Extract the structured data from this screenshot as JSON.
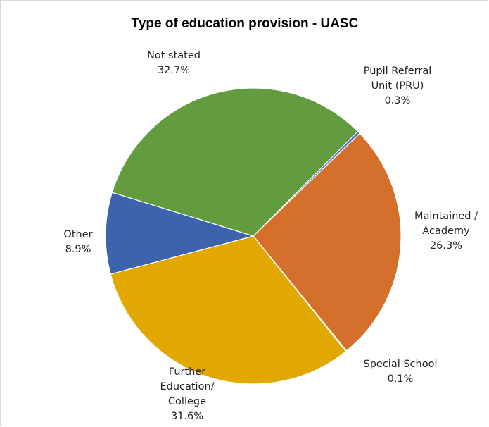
{
  "chart_data": {
    "type": "pie",
    "title": "Type of education provision - UASC",
    "slices": [
      {
        "name": "Pupil Referral Unit (PRU)",
        "label_lines": [
          "Pupil Referral",
          "Unit (PRU)"
        ],
        "percent_text": "0.3%",
        "value": 0.3,
        "color": "#4472c4"
      },
      {
        "name": "Maintained / Academy",
        "label_lines": [
          "Maintained /",
          "Academy"
        ],
        "percent_text": "26.3%",
        "value": 26.3,
        "color": "#d4702b"
      },
      {
        "name": "Special School",
        "label_lines": [
          "Special School"
        ],
        "percent_text": "0.1%",
        "value": 0.1,
        "color": "#a5a5a5"
      },
      {
        "name": "Further Education/ College",
        "label_lines": [
          "Further",
          "Education/",
          "College"
        ],
        "percent_text": "31.6%",
        "value": 31.6,
        "color": "#e0a800"
      },
      {
        "name": "Other",
        "label_lines": [
          "Other"
        ],
        "percent_text": "8.9%",
        "value": 8.9,
        "color": "#3d63ad"
      },
      {
        "name": "Not stated",
        "label_lines": [
          "Not stated"
        ],
        "percent_text": "32.7%",
        "value": 32.7,
        "color": "#629c3f"
      }
    ],
    "start_angle_deg": 45,
    "direction": "clockwise",
    "legend": "none"
  }
}
